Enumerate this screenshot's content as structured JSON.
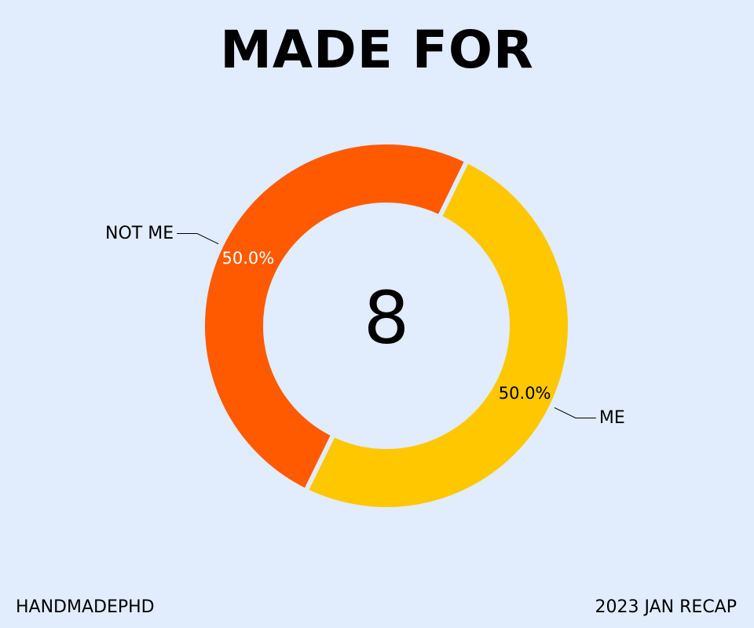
{
  "title": "MADE FOR",
  "footer": {
    "brand": "HANDMADEPHD",
    "period": "2023 JAN RECAP"
  },
  "colors": {
    "background": "#e1ecfd",
    "me": "#ffc700",
    "not_me": "#ff5a00"
  },
  "chart_data": {
    "type": "pie",
    "donut": true,
    "center_label": "8",
    "slices": [
      {
        "label": "ME",
        "value": 50.0,
        "percent_label": "50.0%",
        "color": "#ffc700"
      },
      {
        "label": "NOT ME",
        "value": 50.0,
        "percent_label": "50.0%",
        "color": "#ff5a00"
      }
    ]
  }
}
